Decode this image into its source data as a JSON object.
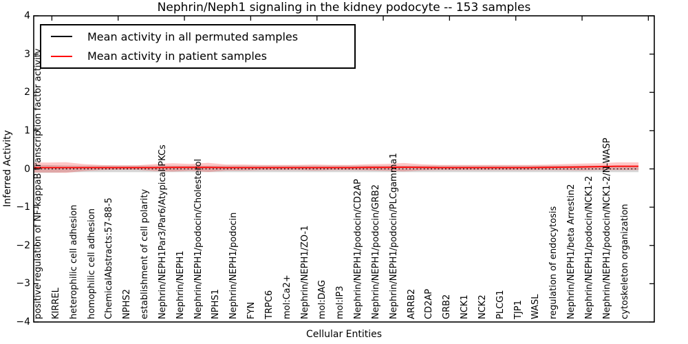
{
  "title": "Nephrin/Neph1 signaling in the kidney podocyte -- 153 samples",
  "axes": {
    "ylabel": "Inferred Activity",
    "xlabel": "Cellular Entities",
    "ytick_labels": [
      "4",
      "3",
      "2",
      "1",
      "0",
      "−1",
      "−2",
      "−3",
      "−4"
    ]
  },
  "legend": {
    "items": [
      {
        "label": "Mean activity in all permuted samples",
        "color": "#000000"
      },
      {
        "label": "Mean activity in patient samples",
        "color": "#ff0000"
      }
    ]
  },
  "colors": {
    "patient_line": "#ff0000",
    "patient_band": "rgba(255,0,0,0.22)",
    "permuted_line": "#000000",
    "permuted_band": "rgba(110,110,110,0.28)",
    "spine": "#000000"
  },
  "chart_data": {
    "type": "line",
    "title": "Nephrin/Neph1 signaling in the kidney podocyte -- 153 samples",
    "xlabel": "Cellular Entities",
    "ylabel": "Inferred Activity",
    "ylim": [
      -4,
      4
    ],
    "yticks": [
      4,
      3,
      2,
      1,
      0,
      -1,
      -2,
      -3,
      -4
    ],
    "grid": false,
    "legend_position": "upper left",
    "categories": [
      "positive regulation of NF-kappaB transcription factor activity",
      "KIRREL",
      "heterophilic cell adhesion",
      "homophilic cell adhesion",
      "ChemicalAbstracts:57-88-5",
      "NPHS2",
      "establishment of cell polarity",
      "Nephrin/NEPH1Par3/Par6/Atypical PKCs",
      "Nephrin/NEPH1",
      "Nephrin/NEPH1/podocin/Cholesterol",
      "NPHS1",
      "Nephrin/NEPH1/podocin",
      "FYN",
      "TRPC6",
      "mol:Ca2+",
      "Nephrin/NEPH1/ZO-1",
      "mol:DAG",
      "mol:IP3",
      "Nephrin/NEPH1/podocin/CD2AP",
      "Nephrin/NEPH1/podocin/GRB2",
      "Nephrin/NEPH1/podocin/PLCgamma1",
      "ARRB2",
      "CD2AP",
      "GRB2",
      "NCK1",
      "NCK2",
      "PLCG1",
      "TJP1",
      "WASL",
      "regulation of endocytosis",
      "Nephrin/NEPH1/beta Arrestin2",
      "Nephrin/NEPH1/podocin/NCK1-2",
      "Nephrin/NEPH1/podocin/NCK1-2/N-WASP",
      "cytoskeleton organization"
    ],
    "series": [
      {
        "name": "Mean activity in all permuted samples",
        "style": "dotted",
        "values": [
          0,
          0,
          0,
          0,
          0,
          0,
          0,
          0,
          0,
          0,
          0,
          0,
          0,
          0,
          0,
          0,
          0,
          0,
          0,
          0,
          0,
          0,
          0,
          0,
          0,
          0,
          0,
          0,
          0,
          0,
          0,
          0,
          0,
          0
        ],
        "band_halfwidth": [
          0.1,
          0.09,
          0.085,
          0.085,
          0.085,
          0.085,
          0.085,
          0.085,
          0.085,
          0.085,
          0.085,
          0.085,
          0.085,
          0.085,
          0.085,
          0.085,
          0.085,
          0.085,
          0.085,
          0.085,
          0.085,
          0.085,
          0.085,
          0.085,
          0.085,
          0.085,
          0.085,
          0.085,
          0.085,
          0.085,
          0.085,
          0.085,
          0.085,
          0.085
        ]
      },
      {
        "name": "Mean activity in patient samples",
        "style": "solid",
        "values": [
          0.035,
          0.035,
          0.035,
          0.035,
          0.035,
          0.035,
          0.035,
          0.04,
          0.04,
          0.04,
          0.035,
          0.035,
          0.035,
          0.035,
          0.035,
          0.035,
          0.035,
          0.035,
          0.04,
          0.04,
          0.045,
          0.04,
          0.035,
          0.035,
          0.035,
          0.035,
          0.035,
          0.035,
          0.04,
          0.045,
          0.05,
          0.06,
          0.07,
          0.07
        ],
        "band_halfwidth": [
          0.13,
          0.14,
          0.09,
          0.065,
          0.06,
          0.06,
          0.09,
          0.11,
          0.09,
          0.12,
          0.08,
          0.08,
          0.07,
          0.07,
          0.07,
          0.08,
          0.07,
          0.07,
          0.08,
          0.09,
          0.11,
          0.08,
          0.07,
          0.07,
          0.07,
          0.07,
          0.07,
          0.07,
          0.07,
          0.08,
          0.09,
          0.09,
          0.1,
          0.1
        ]
      }
    ]
  }
}
